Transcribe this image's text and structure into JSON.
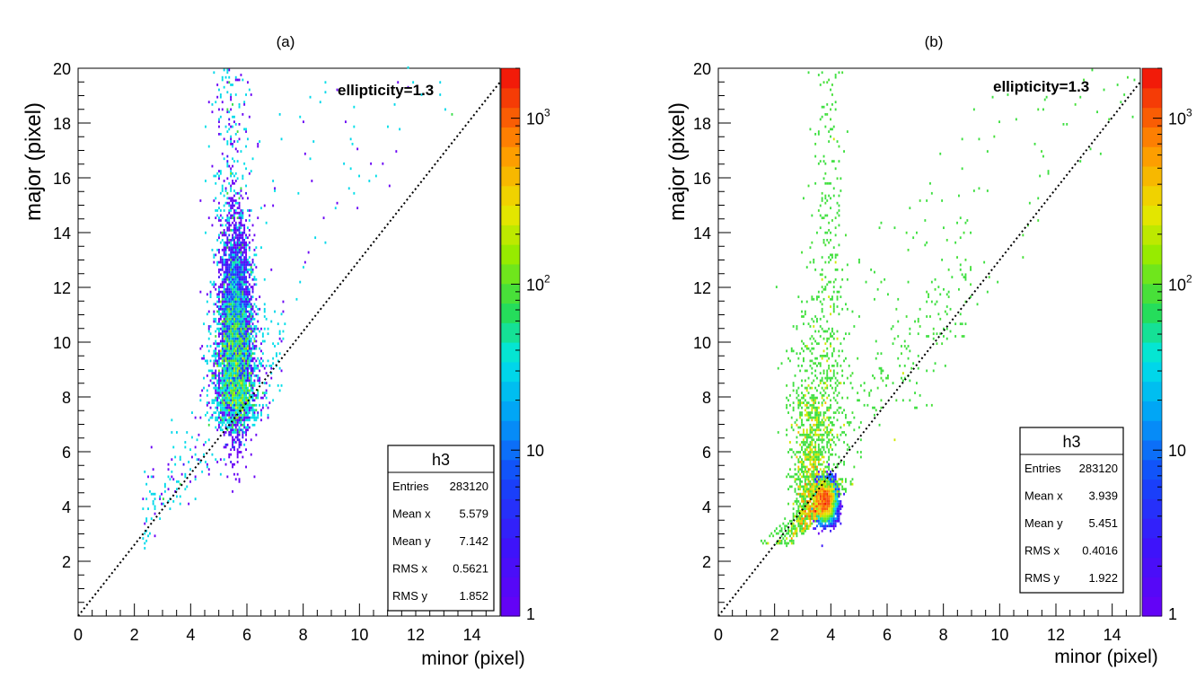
{
  "chart_data": [
    {
      "type": "heatmap",
      "panel_label": "(a)",
      "histogram_name": "h3",
      "xlabel": "minor (pixel)",
      "ylabel": "major (pixel)",
      "xlim": [
        0,
        15
      ],
      "ylim": [
        0,
        20
      ],
      "x_ticks": [
        "0",
        "2",
        "4",
        "6",
        "8",
        "10",
        "12",
        "14"
      ],
      "y_ticks": [
        "2",
        "4",
        "6",
        "8",
        "10",
        "12",
        "14",
        "16",
        "18",
        "20"
      ],
      "z_scale": "log",
      "z_range": [
        1,
        2000
      ],
      "z_ticks": [
        {
          "base": "1",
          "exp": ""
        },
        {
          "base": "10",
          "exp": ""
        },
        {
          "base": "10",
          "exp": "2"
        },
        {
          "base": "10",
          "exp": "3"
        }
      ],
      "annotation": "ellipticity=1.3",
      "reference_line": {
        "slope": 1.3,
        "intercept": 0
      },
      "distribution": {
        "x_mean": 5.579,
        "y_mean": 7.142,
        "core_x": 5.6,
        "core_y": 10.5,
        "core_sx": 0.55,
        "core_sy": 2.6
      },
      "stats": [
        {
          "label": "Entries",
          "value": "283120"
        },
        {
          "label": "Mean x",
          "value": "5.579"
        },
        {
          "label": "Mean y",
          "value": "7.142"
        },
        {
          "label": "RMS x",
          "value": "0.5621"
        },
        {
          "label": "RMS y",
          "value": "1.852"
        }
      ]
    },
    {
      "type": "heatmap",
      "panel_label": "(b)",
      "histogram_name": "h3",
      "xlabel": "minor (pixel)",
      "ylabel": "major (pixel)",
      "xlim": [
        0,
        15
      ],
      "ylim": [
        0,
        20
      ],
      "x_ticks": [
        "0",
        "2",
        "4",
        "6",
        "8",
        "10",
        "12",
        "14"
      ],
      "y_ticks": [
        "2",
        "4",
        "6",
        "8",
        "10",
        "12",
        "14",
        "16",
        "18",
        "20"
      ],
      "z_scale": "log",
      "z_range": [
        1,
        2000
      ],
      "z_ticks": [
        {
          "base": "1",
          "exp": ""
        },
        {
          "base": "10",
          "exp": ""
        },
        {
          "base": "10",
          "exp": "2"
        },
        {
          "base": "10",
          "exp": "3"
        }
      ],
      "annotation": "ellipticity=1.3",
      "reference_line": {
        "slope": 1.3,
        "intercept": 0
      },
      "distribution": {
        "x_mean": 3.939,
        "y_mean": 5.451,
        "peak_x": 3.8,
        "peak_y": 4.2
      },
      "stats": [
        {
          "label": "Entries",
          "value": "283120"
        },
        {
          "label": "Mean x",
          "value": "3.939"
        },
        {
          "label": "Mean y",
          "value": "5.451"
        },
        {
          "label": "RMS x",
          "value": "0.4016"
        },
        {
          "label": "RMS y",
          "value": "1.922"
        }
      ]
    }
  ]
}
